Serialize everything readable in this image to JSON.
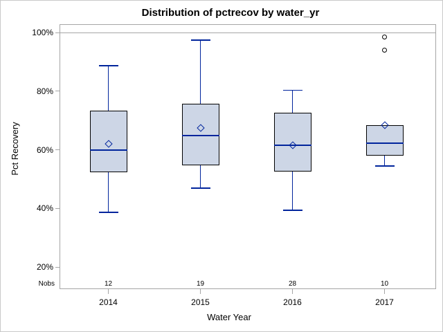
{
  "chart_data": {
    "type": "box",
    "title": "Distribution of pctrecov by water_yr",
    "xlabel": "Water Year",
    "ylabel": "Pct Recovery",
    "nobs_row_label": "Nobs",
    "categories": [
      "2014",
      "2015",
      "2016",
      "2017"
    ],
    "y_ticks": [
      {
        "value": 100,
        "label": "100%"
      },
      {
        "value": 80,
        "label": "80%"
      },
      {
        "value": 60,
        "label": "60%"
      },
      {
        "value": 40,
        "label": "40%"
      },
      {
        "value": 20,
        "label": "20%"
      }
    ],
    "ylim": [
      12.5,
      102.8
    ],
    "grid": false,
    "reference_line_y": 100,
    "legend": "none",
    "series": [
      {
        "category": "2014",
        "nobs": "12",
        "whisker_low": 38.7,
        "q1": 52.3,
        "median": 60.0,
        "q3": 73.4,
        "whisker_high": 88.7,
        "mean": 62.0,
        "outliers": []
      },
      {
        "category": "2015",
        "nobs": "19",
        "whisker_low": 46.9,
        "q1": 54.8,
        "median": 64.9,
        "q3": 75.6,
        "whisker_high": 97.4,
        "mean": 67.5,
        "outliers": []
      },
      {
        "category": "2016",
        "nobs": "28",
        "whisker_low": 39.4,
        "q1": 52.6,
        "median": 61.5,
        "q3": 72.7,
        "whisker_high": 80.3,
        "mean": 61.5,
        "outliers": []
      },
      {
        "category": "2017",
        "nobs": "10",
        "whisker_low": 54.5,
        "q1": 58.0,
        "median": 62.3,
        "q3": 68.4,
        "whisker_high": 68.4,
        "mean": 68.3,
        "outliers": [
          98.5,
          94.0
        ]
      }
    ]
  },
  "colors": {
    "box_fill": "#cdd6e6",
    "box_border": "#000000",
    "whisker": "#00249c",
    "median": "#00249c",
    "mean_marker": "#00249c",
    "outlier": "#000000",
    "axis_frame": "#a5a5a5",
    "reference_line": "#a5a5a5",
    "text": "#000000",
    "figure_border": "#c9c9c9",
    "background": "#ffffff"
  }
}
